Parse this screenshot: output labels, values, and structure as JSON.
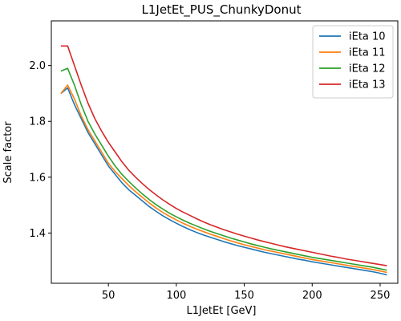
{
  "chart_data": {
    "type": "line",
    "title": "L1JetEt_PUS_ChunkyDonut",
    "xlabel": "L1JetEt [GeV]",
    "ylabel": "Scale factor",
    "xlim": [
      8,
      263
    ],
    "ylim": [
      1.22,
      2.16
    ],
    "xticks": [
      50,
      100,
      150,
      200,
      250
    ],
    "yticks": [
      1.4,
      1.6,
      1.8,
      2.0
    ],
    "grid": false,
    "legend_position": "top-right",
    "x": [
      15,
      20,
      25,
      30,
      35,
      40,
      45,
      50,
      55,
      60,
      65,
      70,
      75,
      80,
      85,
      90,
      95,
      100,
      105,
      110,
      115,
      120,
      125,
      130,
      135,
      140,
      145,
      150,
      155,
      160,
      165,
      170,
      175,
      180,
      185,
      190,
      195,
      200,
      205,
      210,
      215,
      220,
      225,
      230,
      235,
      240,
      245,
      250,
      255
    ],
    "series": [
      {
        "name": "iEta 10",
        "color": "#1f77b4",
        "values": [
          1.9,
          1.92,
          1.86,
          1.81,
          1.76,
          1.72,
          1.68,
          1.64,
          1.61,
          1.58,
          1.555,
          1.535,
          1.515,
          1.495,
          1.478,
          1.462,
          1.448,
          1.435,
          1.423,
          1.412,
          1.402,
          1.393,
          1.385,
          1.377,
          1.369,
          1.362,
          1.355,
          1.349,
          1.343,
          1.337,
          1.331,
          1.326,
          1.321,
          1.316,
          1.311,
          1.306,
          1.302,
          1.297,
          1.293,
          1.289,
          1.285,
          1.281,
          1.277,
          1.273,
          1.269,
          1.265,
          1.261,
          1.256,
          1.25
        ]
      },
      {
        "name": "iEta 11",
        "color": "#ff7f0e",
        "values": [
          1.9,
          1.93,
          1.88,
          1.82,
          1.77,
          1.73,
          1.69,
          1.65,
          1.62,
          1.595,
          1.57,
          1.548,
          1.528,
          1.508,
          1.49,
          1.474,
          1.46,
          1.447,
          1.435,
          1.424,
          1.414,
          1.405,
          1.396,
          1.388,
          1.38,
          1.372,
          1.365,
          1.358,
          1.352,
          1.346,
          1.34,
          1.335,
          1.33,
          1.325,
          1.32,
          1.315,
          1.31,
          1.305,
          1.301,
          1.297,
          1.293,
          1.289,
          1.285,
          1.281,
          1.277,
          1.273,
          1.269,
          1.264,
          1.259
        ]
      },
      {
        "name": "iEta 12",
        "color": "#2ca02c",
        "values": [
          1.98,
          1.99,
          1.93,
          1.86,
          1.8,
          1.755,
          1.715,
          1.675,
          1.64,
          1.61,
          1.585,
          1.562,
          1.54,
          1.52,
          1.502,
          1.486,
          1.471,
          1.458,
          1.446,
          1.435,
          1.425,
          1.415,
          1.406,
          1.398,
          1.39,
          1.382,
          1.375,
          1.368,
          1.361,
          1.355,
          1.349,
          1.343,
          1.338,
          1.333,
          1.328,
          1.323,
          1.318,
          1.313,
          1.309,
          1.305,
          1.301,
          1.297,
          1.293,
          1.289,
          1.285,
          1.281,
          1.277,
          1.272,
          1.267
        ]
      },
      {
        "name": "iEta 13",
        "color": "#d62728",
        "values": [
          2.07,
          2.07,
          2.0,
          1.93,
          1.865,
          1.81,
          1.765,
          1.725,
          1.69,
          1.655,
          1.625,
          1.6,
          1.577,
          1.556,
          1.537,
          1.519,
          1.503,
          1.488,
          1.475,
          1.463,
          1.451,
          1.44,
          1.43,
          1.421,
          1.412,
          1.404,
          1.396,
          1.389,
          1.382,
          1.375,
          1.369,
          1.363,
          1.357,
          1.351,
          1.346,
          1.341,
          1.336,
          1.331,
          1.326,
          1.321,
          1.316,
          1.312,
          1.307,
          1.303,
          1.299,
          1.295,
          1.291,
          1.287,
          1.283
        ]
      }
    ]
  }
}
